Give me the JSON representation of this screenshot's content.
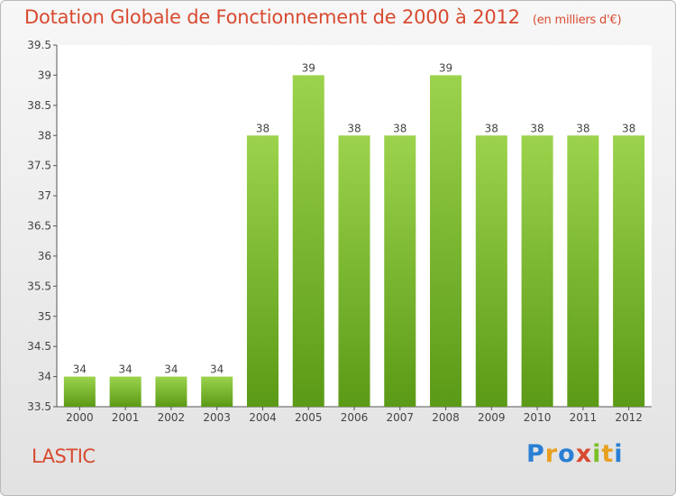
{
  "header": {
    "title": "Dotation Globale de Fonctionnement de 2000 à 2012",
    "unit": "(en milliers d'€)"
  },
  "footer": {
    "city": "LASTIC",
    "logo_text": "Proxiti"
  },
  "colors": {
    "title": "#d84a30",
    "bar_top": "#9cd34d",
    "bar_bottom": "#5b9a16",
    "logo": [
      "#2a7fd4",
      "#e8a020",
      "#2a7fd4",
      "#d84a30",
      "#7cbf2a",
      "#e8a020",
      "#2a7fd4"
    ]
  },
  "chart_data": {
    "type": "bar",
    "title": "Dotation Globale de Fonctionnement de 2000 à 2012",
    "subtitle": "(en milliers d'€)",
    "categories": [
      "2000",
      "2001",
      "2002",
      "2003",
      "2004",
      "2005",
      "2006",
      "2007",
      "2008",
      "2009",
      "2010",
      "2011",
      "2012"
    ],
    "values": [
      34,
      34,
      34,
      34,
      38,
      39,
      38,
      38,
      39,
      38,
      38,
      38,
      38
    ],
    "data_labels": [
      "34",
      "34",
      "34",
      "34",
      "38",
      "39",
      "38",
      "38",
      "39",
      "38",
      "38",
      "38",
      "38"
    ],
    "ylim": [
      33.5,
      39.5
    ],
    "yticks": [
      33.5,
      34,
      34.5,
      35,
      35.5,
      36,
      36.5,
      37,
      37.5,
      38,
      38.5,
      39,
      39.5
    ],
    "ytick_labels": [
      "33.5",
      "34",
      "34.5",
      "35",
      "35.5",
      "36",
      "36.5",
      "37",
      "37.5",
      "38",
      "38.5",
      "39",
      "39.5"
    ],
    "xlabel": "",
    "ylabel": "",
    "grid": false,
    "legend": "none"
  }
}
